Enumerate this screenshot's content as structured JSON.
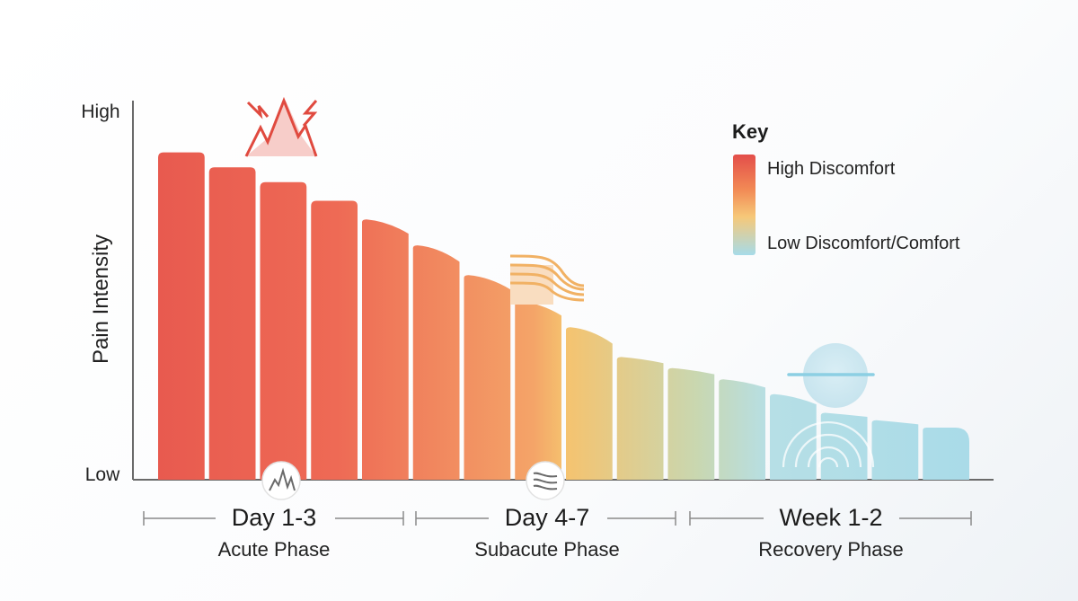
{
  "chart_data": {
    "type": "bar",
    "ylabel": "Pain Intensity",
    "y_tick_labels": {
      "high": "High",
      "low": "Low"
    },
    "ylim": [
      0,
      100
    ],
    "values": [
      88,
      84,
      80,
      75,
      70,
      63,
      55,
      48,
      41,
      33,
      30,
      27,
      23,
      18,
      16,
      14
    ],
    "phases": [
      {
        "period": "Day 1-3",
        "name": "Acute Phase",
        "bar_count": 5
      },
      {
        "period": "Day 4-7",
        "name": "Subacute Phase",
        "bar_count": 5
      },
      {
        "period": "Week 1-2",
        "name": "Recovery Phase",
        "bar_count": 6
      }
    ],
    "legend": {
      "title": "Key",
      "high_label": "High Discomfort",
      "low_label": "Low Discomfort/Comfort",
      "position": "top-right"
    },
    "colors": {
      "high": "#e85a4f",
      "mid": "#f5c36f",
      "low": "#a9dbe8"
    },
    "icons": [
      "lightning-spike-icon",
      "wave-lines-icon",
      "calm-circle-icon",
      "spike-badge-icon",
      "wave-badge-icon",
      "ripple-icon"
    ]
  }
}
